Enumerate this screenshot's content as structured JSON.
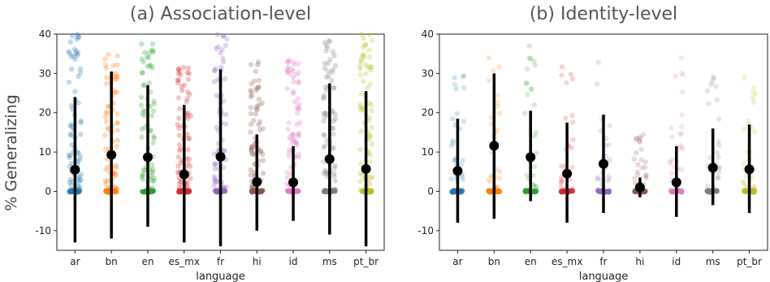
{
  "chart_data": {
    "type": "scatter",
    "ylabel": "% Generalizing",
    "categories": [
      "ar",
      "bn",
      "en",
      "es_mx",
      "fr",
      "hi",
      "id",
      "ms",
      "pt_br"
    ],
    "category_colors": [
      "#1f77b4",
      "#ff7f0e",
      "#2ca02c",
      "#d62728",
      "#9467bd",
      "#8c564b",
      "#e377c2",
      "#7f7f7f",
      "#bcbd22"
    ],
    "panels": [
      {
        "title": "(a) Association-level",
        "xlabel": "language",
        "ylim": [
          -15,
          40
        ],
        "yticks": [
          -10,
          0,
          10,
          20,
          30,
          40
        ],
        "means": [
          5.5,
          9.3,
          8.7,
          4.3,
          8.8,
          2.4,
          2.3,
          8.2,
          5.7
        ],
        "error_bars": [
          [
            -13,
            24
          ],
          [
            -12,
            30.5
          ],
          [
            -9,
            27
          ],
          [
            -13,
            22
          ],
          [
            -14,
            31
          ],
          [
            -10,
            14.5
          ],
          [
            -7.5,
            11.5
          ],
          [
            -11,
            27.5
          ],
          [
            -14,
            25.5
          ]
        ],
        "point_max": [
          40,
          35,
          40,
          33.3,
          40,
          33.3,
          33.3,
          40,
          40
        ]
      },
      {
        "title": "(b) Identity-level",
        "xlabel": "language",
        "ylim": [
          -15,
          40
        ],
        "yticks": [
          -10,
          0,
          10,
          20,
          30,
          40
        ],
        "means": [
          5.2,
          11.6,
          8.7,
          4.5,
          7.0,
          1.0,
          2.3,
          6.0,
          5.6
        ],
        "error_bars": [
          [
            -8,
            18.5
          ],
          [
            -7,
            30
          ],
          [
            -2.5,
            20.5
          ],
          [
            -8,
            17.5
          ],
          [
            -5.5,
            19.5
          ],
          [
            -1.5,
            3.5
          ],
          [
            -6.5,
            11.5
          ],
          [
            -3.5,
            16
          ],
          [
            -5.5,
            17
          ]
        ],
        "point_max": [
          35,
          38,
          38,
          33.3,
          40,
          15,
          34,
          33.3,
          35
        ]
      }
    ]
  }
}
